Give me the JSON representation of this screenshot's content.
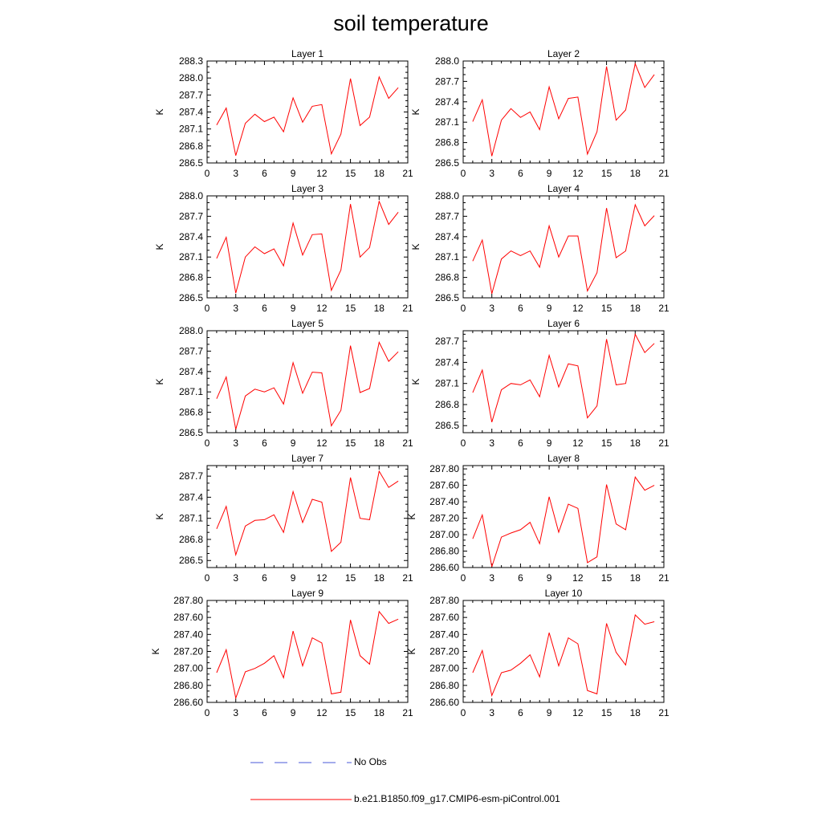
{
  "title": "soil temperature",
  "legend": [
    {
      "label": "No Obs",
      "color": "#4a5ad8",
      "dashed": true
    },
    {
      "label": "b.e21.B1850.f09_g17.CMIP6-esm-piControl.001",
      "color": "#ff0000",
      "dashed": false
    }
  ],
  "chart_data": [
    {
      "type": "line",
      "title": "Layer 1",
      "ylabel": "K",
      "xlim": [
        0,
        21
      ],
      "ylim": [
        286.5,
        288.3
      ],
      "xticks": [
        "0",
        "3",
        "6",
        "9",
        "12",
        "15",
        "18",
        "21"
      ],
      "yticks": [
        "286.5",
        "286.8",
        "287.1",
        "287.4",
        "287.7",
        "288.0",
        "288.3"
      ],
      "x": [
        1,
        2,
        3,
        4,
        5,
        6,
        7,
        8,
        9,
        10,
        11,
        12,
        13,
        14,
        15,
        16,
        17,
        18,
        19,
        20
      ],
      "series": [
        {
          "name": "b.e21.B1850.f09_g17.CMIP6-esm-piControl.001",
          "color": "#ff0000",
          "values": [
            287.17,
            287.47,
            286.63,
            287.2,
            287.36,
            287.23,
            287.31,
            287.05,
            287.65,
            287.22,
            287.5,
            287.53,
            286.66,
            287.01,
            287.99,
            287.16,
            287.31,
            288.02,
            287.64,
            287.83
          ]
        }
      ]
    },
    {
      "type": "line",
      "title": "Layer 2",
      "ylabel": "K",
      "xlim": [
        0,
        21
      ],
      "ylim": [
        286.5,
        288.0
      ],
      "xticks": [
        "0",
        "3",
        "6",
        "9",
        "12",
        "15",
        "18",
        "21"
      ],
      "yticks": [
        "286.5",
        "286.8",
        "287.1",
        "287.4",
        "287.7",
        "288.0"
      ],
      "x": [
        1,
        2,
        3,
        4,
        5,
        6,
        7,
        8,
        9,
        10,
        11,
        12,
        13,
        14,
        15,
        16,
        17,
        18,
        19,
        20
      ],
      "series": [
        {
          "name": "b.e21.B1850.f09_g17.CMIP6-esm-piControl.001",
          "color": "#ff0000",
          "values": [
            287.11,
            287.43,
            286.6,
            287.13,
            287.3,
            287.17,
            287.25,
            286.99,
            287.62,
            287.15,
            287.45,
            287.47,
            286.63,
            286.96,
            287.92,
            287.13,
            287.28,
            287.96,
            287.61,
            287.8
          ]
        }
      ]
    },
    {
      "type": "line",
      "title": "Layer 3",
      "ylabel": "K",
      "xlim": [
        0,
        21
      ],
      "ylim": [
        286.5,
        288.0
      ],
      "xticks": [
        "0",
        "3",
        "6",
        "9",
        "12",
        "15",
        "18",
        "21"
      ],
      "yticks": [
        "286.5",
        "286.8",
        "287.1",
        "287.4",
        "287.7",
        "288.0"
      ],
      "x": [
        1,
        2,
        3,
        4,
        5,
        6,
        7,
        8,
        9,
        10,
        11,
        12,
        13,
        14,
        15,
        16,
        17,
        18,
        19,
        20
      ],
      "series": [
        {
          "name": "b.e21.B1850.f09_g17.CMIP6-esm-piControl.001",
          "color": "#ff0000",
          "values": [
            287.08,
            287.39,
            286.57,
            287.1,
            287.25,
            287.15,
            287.22,
            286.97,
            287.6,
            287.13,
            287.43,
            287.44,
            286.61,
            286.91,
            287.88,
            287.1,
            287.24,
            287.92,
            287.58,
            287.76
          ]
        }
      ]
    },
    {
      "type": "line",
      "title": "Layer 4",
      "ylabel": "K",
      "xlim": [
        0,
        21
      ],
      "ylim": [
        286.5,
        288.0
      ],
      "xticks": [
        "0",
        "3",
        "6",
        "9",
        "12",
        "15",
        "18",
        "21"
      ],
      "yticks": [
        "286.5",
        "286.8",
        "287.1",
        "287.4",
        "287.7",
        "288.0"
      ],
      "x": [
        1,
        2,
        3,
        4,
        5,
        6,
        7,
        8,
        9,
        10,
        11,
        12,
        13,
        14,
        15,
        16,
        17,
        18,
        19,
        20
      ],
      "series": [
        {
          "name": "b.e21.B1850.f09_g17.CMIP6-esm-piControl.001",
          "color": "#ff0000",
          "values": [
            287.04,
            287.35,
            286.56,
            287.07,
            287.19,
            287.12,
            287.19,
            286.95,
            287.56,
            287.1,
            287.41,
            287.41,
            286.6,
            286.87,
            287.82,
            287.09,
            287.19,
            287.87,
            287.56,
            287.71
          ]
        }
      ]
    },
    {
      "type": "line",
      "title": "Layer 5",
      "ylabel": "K",
      "xlim": [
        0,
        21
      ],
      "ylim": [
        286.5,
        288.0
      ],
      "xticks": [
        "0",
        "3",
        "6",
        "9",
        "12",
        "15",
        "18",
        "21"
      ],
      "yticks": [
        "286.5",
        "286.8",
        "287.1",
        "287.4",
        "287.7",
        "288.0"
      ],
      "x": [
        1,
        2,
        3,
        4,
        5,
        6,
        7,
        8,
        9,
        10,
        11,
        12,
        13,
        14,
        15,
        16,
        17,
        18,
        19,
        20
      ],
      "series": [
        {
          "name": "b.e21.B1850.f09_g17.CMIP6-esm-piControl.001",
          "color": "#ff0000",
          "values": [
            287.0,
            287.32,
            286.55,
            287.04,
            287.14,
            287.1,
            287.16,
            286.92,
            287.53,
            287.08,
            287.39,
            287.38,
            286.6,
            286.83,
            287.78,
            287.09,
            287.15,
            287.83,
            287.55,
            287.69
          ]
        }
      ]
    },
    {
      "type": "line",
      "title": "Layer 6",
      "ylabel": "K",
      "xlim": [
        0,
        21
      ],
      "ylim": [
        286.4,
        287.85
      ],
      "xticks": [
        "0",
        "3",
        "6",
        "9",
        "12",
        "15",
        "18",
        "21"
      ],
      "yticks": [
        "286.5",
        "286.8",
        "287.1",
        "287.4",
        "287.7"
      ],
      "x": [
        1,
        2,
        3,
        4,
        5,
        6,
        7,
        8,
        9,
        10,
        11,
        12,
        13,
        14,
        15,
        16,
        17,
        18,
        19,
        20
      ],
      "series": [
        {
          "name": "b.e21.B1850.f09_g17.CMIP6-esm-piControl.001",
          "color": "#ff0000",
          "values": [
            286.97,
            287.29,
            286.55,
            287.01,
            287.1,
            287.08,
            287.15,
            286.91,
            287.5,
            287.05,
            287.38,
            287.35,
            286.61,
            286.78,
            287.73,
            287.08,
            287.1,
            287.8,
            287.54,
            287.67
          ]
        }
      ]
    },
    {
      "type": "line",
      "title": "Layer 7",
      "ylabel": "K",
      "xlim": [
        0,
        21
      ],
      "ylim": [
        286.4,
        287.85
      ],
      "xticks": [
        "0",
        "3",
        "6",
        "9",
        "12",
        "15",
        "18",
        "21"
      ],
      "yticks": [
        "286.5",
        "286.8",
        "287.1",
        "287.4",
        "287.7"
      ],
      "x": [
        1,
        2,
        3,
        4,
        5,
        6,
        7,
        8,
        9,
        10,
        11,
        12,
        13,
        14,
        15,
        16,
        17,
        18,
        19,
        20
      ],
      "series": [
        {
          "name": "b.e21.B1850.f09_g17.CMIP6-esm-piControl.001",
          "color": "#ff0000",
          "values": [
            286.95,
            287.27,
            286.58,
            286.99,
            287.07,
            287.08,
            287.15,
            286.9,
            287.48,
            287.04,
            287.37,
            287.33,
            286.63,
            286.76,
            287.68,
            287.1,
            287.08,
            287.77,
            287.54,
            287.63
          ]
        }
      ]
    },
    {
      "type": "line",
      "title": "Layer 8",
      "ylabel": "K",
      "xlim": [
        0,
        21
      ],
      "ylim": [
        286.6,
        287.84
      ],
      "xticks": [
        "0",
        "3",
        "6",
        "9",
        "12",
        "15",
        "18",
        "21"
      ],
      "yticks": [
        "286.60",
        "286.80",
        "287.00",
        "287.20",
        "287.40",
        "287.60",
        "287.80"
      ],
      "x": [
        1,
        2,
        3,
        4,
        5,
        6,
        7,
        8,
        9,
        10,
        11,
        12,
        13,
        14,
        15,
        16,
        17,
        18,
        19,
        20
      ],
      "series": [
        {
          "name": "b.e21.B1850.f09_g17.CMIP6-esm-piControl.001",
          "color": "#ff0000",
          "values": [
            286.95,
            287.24,
            286.61,
            286.97,
            287.02,
            287.06,
            287.15,
            286.89,
            287.46,
            287.03,
            287.37,
            287.32,
            286.66,
            286.73,
            287.61,
            287.13,
            287.06,
            287.7,
            287.54,
            287.6
          ]
        }
      ]
    },
    {
      "type": "line",
      "title": "Layer 9",
      "ylabel": "K",
      "xlim": [
        0,
        21
      ],
      "ylim": [
        286.6,
        287.8
      ],
      "xticks": [
        "0",
        "3",
        "6",
        "9",
        "12",
        "15",
        "18",
        "21"
      ],
      "yticks": [
        "286.60",
        "286.80",
        "287.00",
        "287.20",
        "287.40",
        "287.60",
        "287.80"
      ],
      "x": [
        1,
        2,
        3,
        4,
        5,
        6,
        7,
        8,
        9,
        10,
        11,
        12,
        13,
        14,
        15,
        16,
        17,
        18,
        19,
        20
      ],
      "series": [
        {
          "name": "b.e21.B1850.f09_g17.CMIP6-esm-piControl.001",
          "color": "#ff0000",
          "values": [
            286.95,
            287.22,
            286.65,
            286.96,
            287.0,
            287.06,
            287.15,
            286.89,
            287.44,
            287.03,
            287.36,
            287.3,
            286.7,
            286.72,
            287.57,
            287.15,
            287.05,
            287.67,
            287.53,
            287.58
          ]
        }
      ]
    },
    {
      "type": "line",
      "title": "Layer 10",
      "ylabel": "K",
      "xlim": [
        0,
        21
      ],
      "ylim": [
        286.6,
        287.8
      ],
      "xticks": [
        "0",
        "3",
        "6",
        "9",
        "12",
        "15",
        "18",
        "21"
      ],
      "yticks": [
        "286.60",
        "286.80",
        "287.00",
        "287.20",
        "287.40",
        "287.60",
        "287.80"
      ],
      "x": [
        1,
        2,
        3,
        4,
        5,
        6,
        7,
        8,
        9,
        10,
        11,
        12,
        13,
        14,
        15,
        16,
        17,
        18,
        19,
        20
      ],
      "series": [
        {
          "name": "b.e21.B1850.f09_g17.CMIP6-esm-piControl.001",
          "color": "#ff0000",
          "values": [
            286.95,
            287.21,
            286.68,
            286.95,
            286.98,
            287.06,
            287.16,
            286.9,
            287.42,
            287.03,
            287.36,
            287.29,
            286.74,
            286.7,
            287.53,
            287.19,
            287.04,
            287.63,
            287.52,
            287.55
          ]
        }
      ]
    }
  ]
}
